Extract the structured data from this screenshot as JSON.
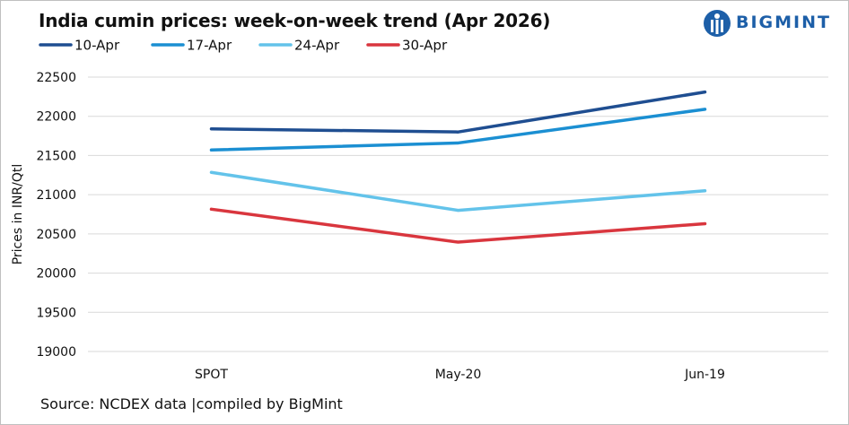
{
  "header": {
    "title": "India cumin prices: week-on-week trend (Apr 2026)",
    "brand_name": "BIGMINT"
  },
  "footer": {
    "source": "Source: NCDEX data  |compiled by BigMint"
  },
  "colors": {
    "10-Apr": "#1f4e91",
    "17-Apr": "#1b8fd2",
    "24-Apr": "#63c3ea",
    "30-Apr": "#d9363e",
    "brand": "#1d5fa8",
    "grid": "#d9d9d9"
  },
  "chart_data": {
    "type": "line",
    "title": "India cumin prices: week-on-week trend (Apr 2026)",
    "xlabel": "",
    "ylabel": "Prices in INR/Qtl",
    "categories": [
      "SPOT",
      "May-20",
      "Jun-19"
    ],
    "ylim": [
      19000,
      22500
    ],
    "yticks": [
      19000,
      19500,
      20000,
      20500,
      21000,
      21500,
      22000,
      22500
    ],
    "grid": true,
    "legend_position": "top-left",
    "series": [
      {
        "name": "10-Apr",
        "values": [
          21840,
          21800,
          22310
        ]
      },
      {
        "name": "17-Apr",
        "values": [
          21570,
          21660,
          22090
        ]
      },
      {
        "name": "24-Apr",
        "values": [
          21285,
          20800,
          21050
        ]
      },
      {
        "name": "30-Apr",
        "values": [
          20815,
          20395,
          20630
        ]
      }
    ]
  }
}
